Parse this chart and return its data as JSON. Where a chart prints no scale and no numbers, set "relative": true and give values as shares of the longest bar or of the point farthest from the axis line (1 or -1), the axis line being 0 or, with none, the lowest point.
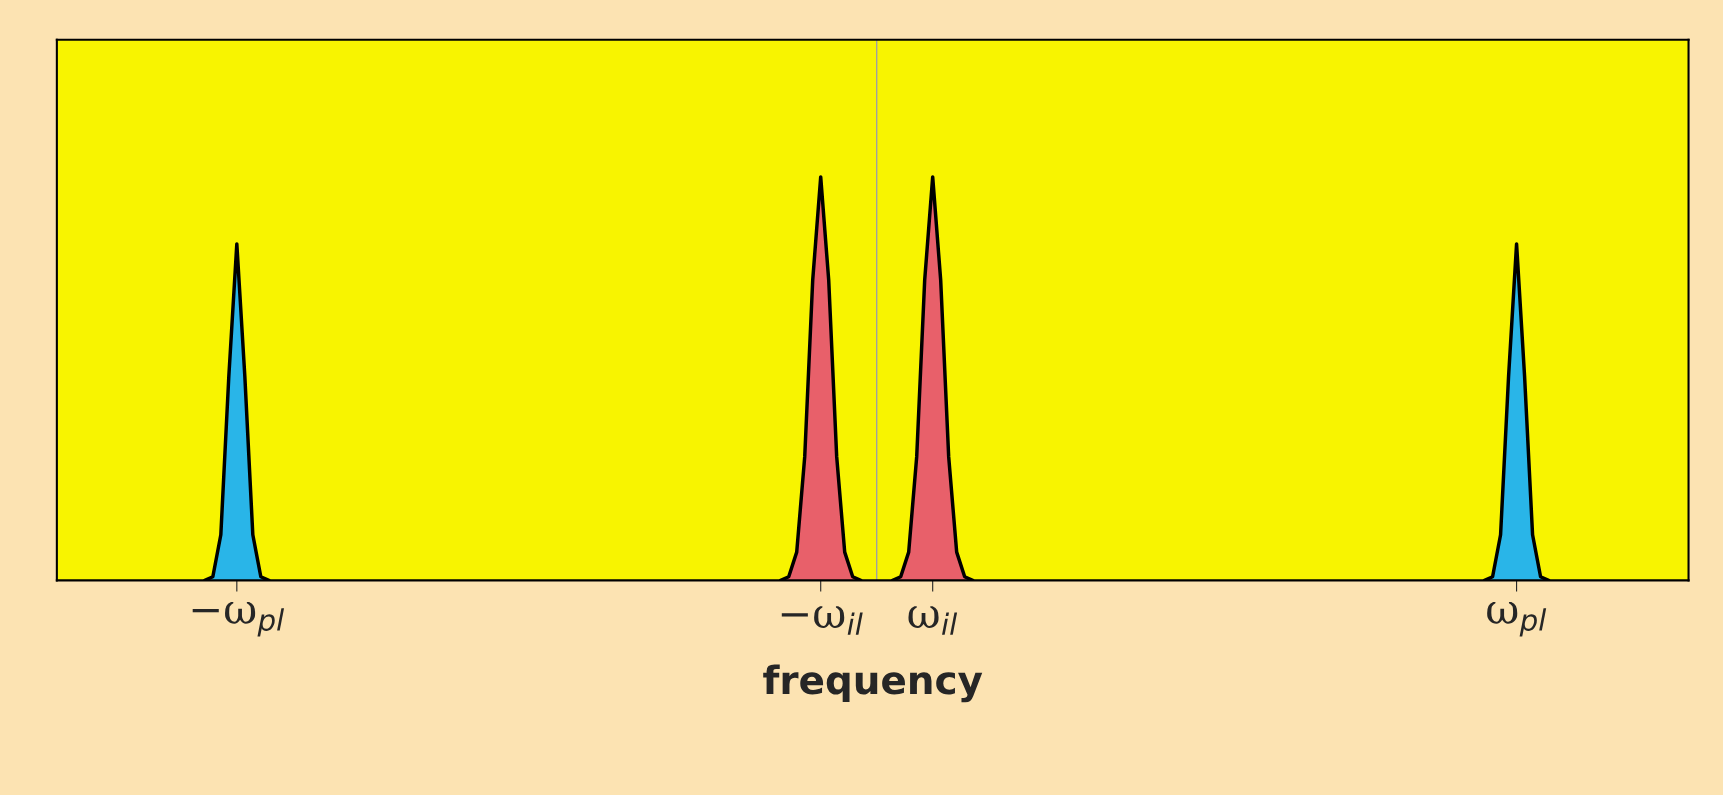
{
  "chart_data": {
    "type": "area",
    "xlabel": "frequency",
    "relative": true,
    "tick_labels": "x",
    "categories": [
      null,
      null,
      null,
      null,
      null,
      null,
      null,
      null,
      null,
      null,
      null,
      null,
      null,
      null,
      null,
      null,
      null,
      null,
      null,
      null,
      null,
      null,
      "−ω$_{pl}$",
      null,
      null,
      null,
      null,
      null,
      null,
      null,
      null,
      null,
      null,
      null,
      null,
      null,
      null,
      null,
      null,
      null,
      null,
      null,
      null,
      null,
      null,
      null,
      null,
      null,
      null,
      null,
      null,
      null,
      null,
      null,
      null,
      null,
      null,
      null,
      null,
      null,
      null,
      null,
      null,
      null,
      null,
      null,
      null,
      null,
      null,
      null,
      null,
      null,
      null,
      null,
      null,
      null,
      null,
      null,
      null,
      null,
      null,
      null,
      null,
      null,
      null,
      null,
      null,
      null,
      null,
      null,
      null,
      null,
      null,
      null,
      null,
      "−ω$_{il}$",
      null,
      null,
      null,
      null,
      null,
      null,
      null,
      null,
      null,
      null,
      null,
      null,
      null,
      "ω$_{il}$",
      null,
      null,
      null,
      null,
      null,
      null,
      null,
      null,
      null,
      null,
      null,
      null,
      null,
      null,
      null,
      null,
      null,
      null,
      null,
      null,
      null,
      null,
      null,
      null,
      null,
      null,
      null,
      null,
      null,
      null,
      null,
      null,
      null,
      null,
      null,
      null,
      null,
      null,
      null,
      null,
      null,
      null,
      null,
      null,
      null,
      null,
      null,
      null,
      null,
      null,
      null,
      null,
      null,
      null,
      null,
      null,
      null,
      null,
      null,
      null,
      null,
      null,
      null,
      null,
      null,
      null,
      null,
      null,
      null,
      null,
      null,
      null,
      "ω$_{pl}$",
      null,
      null,
      null,
      null,
      null,
      null,
      null,
      null,
      null,
      null,
      null,
      null,
      null,
      null,
      null,
      null,
      null,
      null,
      null,
      null,
      null
    ],
    "series": [
      {
        "color": "#29b5e8",
        "values": [
          null,
          null,
          null,
          null,
          null,
          null,
          null,
          null,
          null,
          null,
          null,
          null,
          null,
          null,
          null,
          null,
          null,
          null,
          0,
          0.009,
          0.113,
          0.506,
          0.834,
          0.506,
          0.113,
          0.009,
          0,
          null,
          null,
          null,
          null,
          null,
          null,
          null,
          null,
          null,
          null,
          null,
          null,
          null,
          null,
          null,
          null,
          null,
          null,
          null,
          null,
          null,
          null,
          null,
          null,
          null,
          null,
          null,
          null,
          null,
          null,
          null,
          null,
          null,
          null,
          null,
          null,
          null,
          null,
          null,
          null,
          null,
          null,
          null,
          null,
          null,
          null,
          null,
          null,
          null,
          null,
          null,
          null,
          null,
          null,
          null,
          null,
          null,
          null,
          null,
          null,
          null,
          null,
          null,
          null,
          null,
          null,
          null,
          null,
          null,
          null,
          null,
          null,
          null,
          null,
          null,
          null,
          null,
          null,
          null,
          null,
          null,
          null,
          null,
          null,
          null,
          null,
          null,
          null,
          null,
          null,
          null,
          null,
          null,
          null,
          null,
          null,
          null,
          null,
          null,
          null,
          null,
          null,
          null,
          null,
          null,
          null,
          null,
          null,
          null,
          null,
          null,
          null,
          null,
          null,
          null,
          null,
          null,
          null,
          null,
          null,
          null,
          null,
          null,
          null,
          null,
          null,
          null,
          null,
          null,
          null,
          null,
          null,
          null,
          null,
          null,
          null,
          null,
          null,
          null,
          null,
          null,
          null,
          null,
          null,
          null,
          null,
          null,
          null,
          null,
          null,
          null,
          0,
          0.009,
          0.113,
          0.506,
          0.834,
          0.506,
          0.113,
          0.009,
          0,
          null,
          null,
          null,
          null,
          null,
          null,
          null,
          null,
          null,
          null,
          null,
          null,
          null,
          null,
          null,
          null,
          null
        ]
      },
      {
        "color": "#e8606a",
        "values": [
          null,
          null,
          null,
          null,
          null,
          null,
          null,
          null,
          null,
          null,
          null,
          null,
          null,
          null,
          null,
          null,
          null,
          null,
          null,
          null,
          null,
          null,
          null,
          null,
          null,
          null,
          null,
          null,
          null,
          null,
          null,
          null,
          null,
          null,
          null,
          null,
          null,
          null,
          null,
          null,
          null,
          null,
          null,
          null,
          null,
          null,
          null,
          null,
          null,
          null,
          null,
          null,
          null,
          null,
          null,
          null,
          null,
          null,
          null,
          null,
          null,
          null,
          null,
          null,
          null,
          null,
          null,
          null,
          null,
          null,
          null,
          null,
          null,
          null,
          null,
          null,
          null,
          null,
          null,
          null,
          null,
          null,
          null,
          null,
          null,
          null,
          null,
          null,
          null,
          null,
          0,
          0.009,
          0.07,
          0.306,
          0.744,
          1,
          0.744,
          0.306,
          0.07,
          0.009,
          0,
          null,
          null,
          null,
          0,
          0.009,
          0.07,
          0.306,
          0.744,
          1,
          0.744,
          0.306,
          0.07,
          0.009,
          0,
          null,
          null,
          null,
          null,
          null,
          null,
          null,
          null,
          null,
          null,
          null,
          null,
          null,
          null,
          null,
          null,
          null,
          null,
          null,
          null,
          null,
          null,
          null,
          null,
          null,
          null,
          null,
          null,
          null,
          null,
          null,
          null,
          null,
          null,
          null,
          null,
          null,
          null,
          null,
          null,
          null,
          null,
          null,
          null,
          null,
          null,
          null,
          null,
          null,
          null,
          null,
          null,
          null,
          null,
          null,
          null,
          null,
          null,
          null,
          null,
          null,
          null,
          null,
          null,
          null,
          null,
          null,
          null,
          null,
          null,
          null,
          null,
          null,
          null,
          null,
          null,
          null,
          null,
          null,
          null,
          null,
          null,
          null,
          null,
          null,
          null,
          null,
          null,
          null
        ]
      }
    ]
  }
}
